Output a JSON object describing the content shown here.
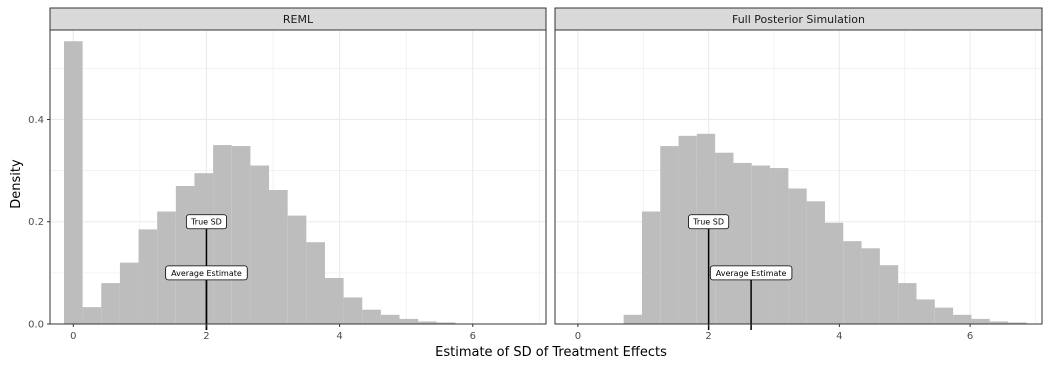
{
  "chart_data": {
    "type": "bar",
    "xlabel": "Estimate of SD of Treatment Effects",
    "ylabel": "Density",
    "xlim": [
      -0.35,
      7.1
    ],
    "ylim": [
      0,
      0.575
    ],
    "x_ticks": [
      0,
      2,
      4,
      6
    ],
    "y_ticks": [
      0.0,
      0.2,
      0.4
    ],
    "y_tick_labels": [
      "0.0",
      "0.2",
      "0.4"
    ],
    "bin_width": 0.28,
    "grid": true,
    "bar_color": "#bdbdbd",
    "panels": [
      {
        "title": "REML",
        "bin_centers": [
          0.0,
          0.28,
          0.56,
          0.84,
          1.12,
          1.4,
          1.68,
          1.96,
          2.24,
          2.52,
          2.8,
          3.08,
          3.36,
          3.64,
          3.92,
          4.2,
          4.48,
          4.76,
          5.04,
          5.32,
          5.6
        ],
        "values": [
          0.553,
          0.033,
          0.08,
          0.12,
          0.185,
          0.22,
          0.27,
          0.295,
          0.35,
          0.348,
          0.31,
          0.262,
          0.212,
          0.16,
          0.09,
          0.052,
          0.028,
          0.018,
          0.01,
          0.005,
          0.003
        ],
        "annotations": [
          {
            "text": "True SD",
            "x": 2.0
          },
          {
            "text": "Average Estimate",
            "x": 2.0
          }
        ]
      },
      {
        "title": "Full Posterior Simulation",
        "bin_centers": [
          0.84,
          1.12,
          1.4,
          1.68,
          1.96,
          2.24,
          2.52,
          2.8,
          3.08,
          3.36,
          3.64,
          3.92,
          4.2,
          4.48,
          4.76,
          5.04,
          5.32,
          5.6,
          5.88,
          6.16,
          6.44,
          6.72
        ],
        "values": [
          0.018,
          0.22,
          0.348,
          0.368,
          0.372,
          0.335,
          0.315,
          0.31,
          0.305,
          0.265,
          0.24,
          0.198,
          0.162,
          0.148,
          0.115,
          0.08,
          0.048,
          0.032,
          0.018,
          0.01,
          0.005,
          0.003
        ],
        "annotations": [
          {
            "text": "True SD",
            "x": 2.0
          },
          {
            "text": "Average Estimate",
            "x": 2.65
          }
        ]
      }
    ]
  }
}
